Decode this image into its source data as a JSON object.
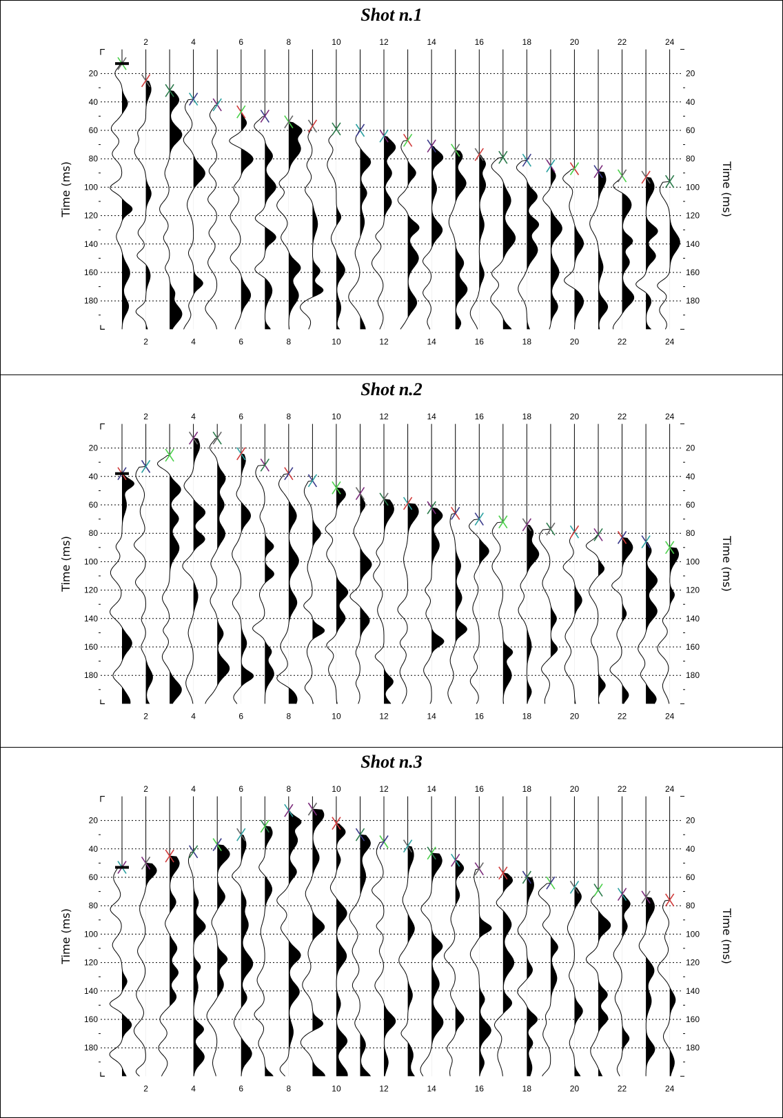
{
  "chart_data": [
    {
      "type": "seismogram",
      "title": "Shot n.1",
      "ylabel_left": "Time (ms)",
      "ylabel_right": "Time (ms)",
      "traces": 24,
      "trace_tick_labels": [
        "2",
        "4",
        "6",
        "8",
        "10",
        "12",
        "14",
        "16",
        "18",
        "20",
        "22",
        "24"
      ],
      "time_ticks": [
        20,
        40,
        60,
        80,
        100,
        120,
        140,
        160,
        180
      ],
      "ylim": [
        0,
        200
      ],
      "grid": "horizontal dotted",
      "first_break_picks_ms": [
        13,
        25,
        32,
        38,
        42,
        47,
        50,
        54,
        57,
        59,
        60,
        64,
        67,
        71,
        74,
        77,
        79,
        81,
        85,
        87,
        89,
        92,
        93,
        96
      ],
      "source_marker_trace": 1,
      "source_marker_ms": 13
    },
    {
      "type": "seismogram",
      "title": "Shot n.2",
      "ylabel_left": "Time (ms)",
      "ylabel_right": "Time (ms)",
      "traces": 24,
      "trace_tick_labels": [
        "2",
        "4",
        "6",
        "8",
        "10",
        "12",
        "14",
        "16",
        "18",
        "20",
        "22",
        "24"
      ],
      "time_ticks": [
        20,
        40,
        60,
        80,
        100,
        120,
        140,
        160,
        180
      ],
      "ylim": [
        0,
        200
      ],
      "grid": "horizontal dotted",
      "first_break_picks_ms": [
        38,
        33,
        25,
        13,
        13,
        24,
        32,
        38,
        43,
        48,
        52,
        56,
        59,
        62,
        66,
        70,
        72,
        74,
        77,
        79,
        81,
        83,
        86,
        90
      ],
      "source_marker_trace": 1,
      "source_marker_ms": 38
    },
    {
      "type": "seismogram",
      "title": "Shot n.3",
      "ylabel_left": "Time (ms)",
      "ylabel_right": "Time (ms)",
      "traces": 24,
      "trace_tick_labels": [
        "2",
        "4",
        "6",
        "8",
        "10",
        "12",
        "14",
        "16",
        "18",
        "20",
        "22",
        "24"
      ],
      "time_ticks": [
        20,
        40,
        60,
        80,
        100,
        120,
        140,
        160,
        180
      ],
      "ylim": [
        0,
        200
      ],
      "grid": "horizontal dotted",
      "first_break_picks_ms": [
        53,
        50,
        45,
        42,
        37,
        30,
        24,
        13,
        12,
        22,
        30,
        35,
        38,
        43,
        48,
        54,
        57,
        60,
        64,
        67,
        69,
        72,
        74,
        76
      ],
      "source_marker_trace": 1,
      "source_marker_ms": 53
    }
  ],
  "colors": {
    "trace": "#000000",
    "grid": "#000000",
    "pick_palette": [
      "#3a3a8a",
      "#7a2a7a",
      "#2a7a4a",
      "#4ad04a",
      "#d03a3a",
      "#2aa0a0",
      "#666666"
    ]
  }
}
